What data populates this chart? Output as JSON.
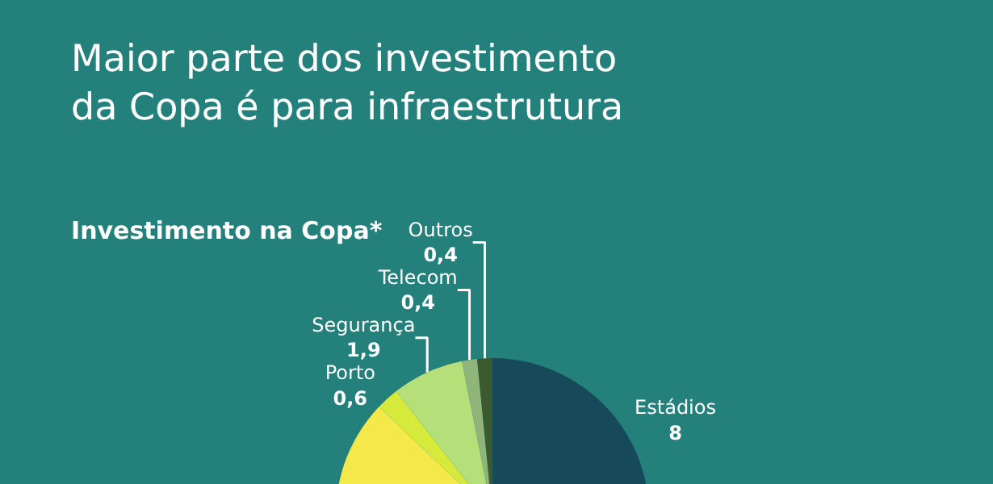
{
  "chart_data": {
    "type": "pie",
    "title": "Maior parte dos investimento\nda Copa é para infraestrutura",
    "subtitle": "Investimento na Copa*",
    "categories": [
      "Estádios",
      null,
      "Porto",
      "Segurança",
      "Telecom",
      "Outros"
    ],
    "values": [
      8,
      14.3,
      0.6,
      1.9,
      0.4,
      0.4
    ],
    "value_labels": [
      "8",
      null,
      "0,6",
      "1,9",
      "0,4",
      "0,4"
    ],
    "colors": [
      "#164a5a",
      "#f5e84a",
      "#d6ea3c",
      "#b5df78",
      "#8fb57a",
      "#3c5a30"
    ]
  }
}
